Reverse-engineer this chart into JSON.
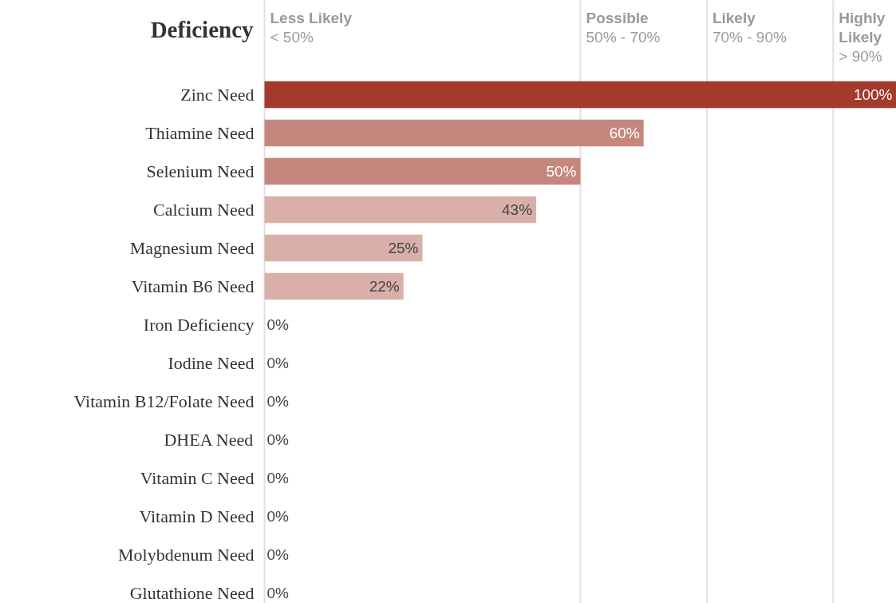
{
  "chart_data": {
    "type": "bar",
    "orientation": "horizontal",
    "ylabel": "Deficiency",
    "categories": [
      "Zinc Need",
      "Thiamine Need",
      "Selenium Need",
      "Calcium Need",
      "Magnesium Need",
      "Vitamin B6 Need",
      "Iron Deficiency",
      "Iodine Need",
      "Vitamin B12/Folate Need",
      "DHEA Need",
      "Vitamin C Need",
      "Vitamin D Need",
      "Molybdenum Need",
      "Glutathione Need"
    ],
    "values": [
      100,
      60,
      50,
      43,
      25,
      22,
      0,
      0,
      0,
      0,
      0,
      0,
      0,
      0
    ],
    "value_labels": [
      "100%",
      "60%",
      "50%",
      "43%",
      "25%",
      "22%",
      "0%",
      "0%",
      "0%",
      "0%",
      "0%",
      "0%",
      "0%",
      "0%"
    ],
    "colors": [
      "#a33a2c",
      "#c5877d",
      "#c5877d",
      "#d9b0a9",
      "#d9b0a9",
      "#d9b0a9",
      "#d9b0a9",
      "#d9b0a9",
      "#d9b0a9",
      "#d9b0a9",
      "#d9b0a9",
      "#d9b0a9",
      "#d9b0a9",
      "#d9b0a9"
    ],
    "xlim": [
      0,
      100
    ],
    "ref_lines": [
      {
        "axis": "x",
        "value": 0,
        "label": "Less Likely\n< 50%"
      },
      {
        "axis": "x",
        "value": 50,
        "label": "Possible\n50% - 70%"
      },
      {
        "axis": "x",
        "value": 70,
        "label": "Likely\n70% - 90%"
      },
      {
        "axis": "x",
        "value": 90,
        "label": "Highly\nLikely\n> 90%"
      }
    ],
    "tick_labels": "y",
    "grid": false
  }
}
